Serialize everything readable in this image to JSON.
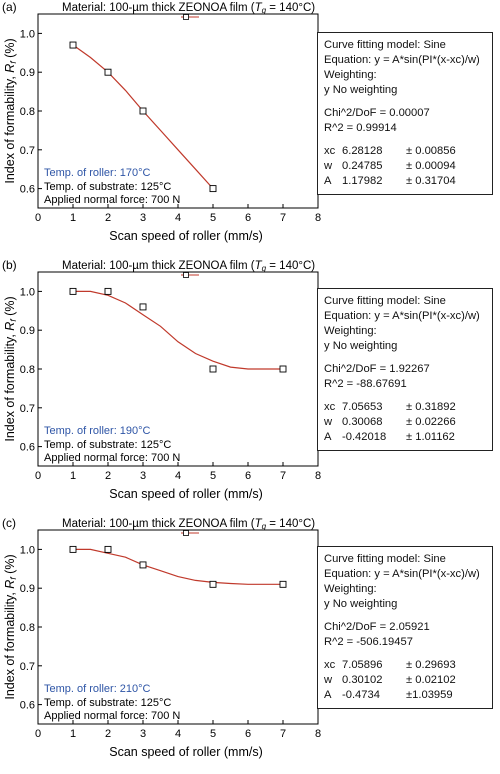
{
  "panels": [
    {
      "tag": "(a)",
      "header": {
        "prefix": "Material: 100-µm thick ZEONOA film (",
        "tg_symbol": "T",
        "tg_sub": "g",
        "suffix": " = 140°C)"
      },
      "legend_icon": "line-square-marker-icon",
      "annotations": {
        "roller": "Temp. of roller: 170°C",
        "substrate": "Temp. of substrate: 125°C",
        "force": "Applied normal force: 700 N"
      },
      "fit": {
        "model": "Curve fitting model: Sine",
        "equation": "Equation: y = A*sin(PI*(x-xc)/w)",
        "weighting_label": "Weighting:",
        "weighting": "y     No weighting",
        "chi2": "Chi^2/DoF = 0.00007",
        "r2": "R^2     = 0.99914",
        "params": [
          {
            "name": "xc",
            "value": "6.28128",
            "error": "± 0.00856"
          },
          {
            "name": "w",
            "value": "0.24785",
            "error": "± 0.00094"
          },
          {
            "name": "A",
            "value": "1.17982",
            "error": "± 0.31704"
          }
        ]
      }
    },
    {
      "tag": "(b)",
      "header": {
        "prefix": "Material: 100-µm thick ZEONOA film (",
        "tg_symbol": "T",
        "tg_sub": "g",
        "suffix": " = 140°C)"
      },
      "legend_icon": "line-square-marker-icon",
      "annotations": {
        "roller": "Temp. of roller: 190°C",
        "substrate": "Temp. of substrate: 125°C",
        "force": "Applied normal force: 700 N"
      },
      "fit": {
        "model": "Curve fitting model: Sine",
        "equation": "Equation: y = A*sin(PI*(x-xc)/w)",
        "weighting_label": "Weighting:",
        "weighting": "y     No weighting",
        "chi2": "Chi^2/DoF = 1.92267",
        "r2": "R^2     = -88.67691",
        "params": [
          {
            "name": "xc",
            "value": "7.05653",
            "error": "± 0.31892"
          },
          {
            "name": "w",
            "value": "0.30068",
            "error": "± 0.02266"
          },
          {
            "name": "A",
            "value": "-0.42018",
            "error": "± 1.01162"
          }
        ]
      }
    },
    {
      "tag": "(c)",
      "header": {
        "prefix": "Material: 100-µm thick ZEONOA film (",
        "tg_symbol": "T",
        "tg_sub": "g",
        "suffix": " = 140°C)"
      },
      "legend_icon": "line-square-marker-icon",
      "annotations": {
        "roller": "Temp. of roller: 210°C",
        "substrate": "Temp. of substrate: 125°C",
        "force": "Applied normal force: 700 N"
      },
      "fit": {
        "model": "Curve fitting model: Sine",
        "equation": "Equation: y = A*sin(PI*(x-xc)/w)",
        "weighting_label": "Weighting:",
        "weighting": "y     No weighting",
        "chi2": "Chi^2/DoF = 2.05921",
        "r2": "R^2     = -506.19457",
        "params": [
          {
            "name": "xc",
            "value": "7.05896",
            "error": "± 0.29693"
          },
          {
            "name": "w",
            "value": "0.30102",
            "error": "± 0.02102"
          },
          {
            "name": "A",
            "value": "-0.4734",
            "error": "±1.03959"
          }
        ]
      }
    }
  ],
  "colors": {
    "fit_line": "#c0392b",
    "roller_text": "#2e55a6",
    "axis": "#000000",
    "marker": "#000000"
  },
  "chart_data": [
    {
      "type": "scatter",
      "title": "",
      "xlabel": "Scan speed of roller (mm/s)",
      "ylabel_prefix": "Index of formability, ",
      "ylabel_symbol": "R",
      "ylabel_sub": "f",
      "ylabel_suffix": " (%)",
      "xlim": [
        0,
        8
      ],
      "ylim": [
        0.55,
        1.05
      ],
      "xticks": [
        0,
        1,
        2,
        3,
        4,
        5,
        6,
        7,
        8
      ],
      "yticks": [
        0.6,
        0.7,
        0.8,
        0.9,
        1.0
      ],
      "ytick_labels": [
        "0.6",
        "0.7",
        "0.8",
        "0.9",
        "1.0"
      ],
      "grid": false,
      "series": [
        {
          "x": [
            1,
            2,
            3,
            5
          ],
          "y": [
            0.97,
            0.9,
            0.8,
            0.6
          ],
          "marker": "open-square"
        }
      ],
      "fit_curve": {
        "x": [
          1.0,
          1.5,
          2.0,
          2.5,
          3.0,
          3.5,
          4.0,
          4.5,
          5.0
        ],
        "y": [
          0.97,
          0.938,
          0.9,
          0.853,
          0.8,
          0.75,
          0.7,
          0.65,
          0.6
        ]
      }
    },
    {
      "type": "scatter",
      "title": "",
      "xlabel": "Scan speed of roller (mm/s)",
      "ylabel_prefix": "Index of formability, ",
      "ylabel_symbol": "R",
      "ylabel_sub": "f",
      "ylabel_suffix": " (%)",
      "xlim": [
        0,
        8
      ],
      "ylim": [
        0.55,
        1.05
      ],
      "xticks": [
        0,
        1,
        2,
        3,
        4,
        5,
        6,
        7,
        8
      ],
      "yticks": [
        0.6,
        0.7,
        0.8,
        0.9,
        1.0
      ],
      "ytick_labels": [
        "0.6",
        "0.7",
        "0.8",
        "0.9",
        "1.0"
      ],
      "grid": false,
      "series": [
        {
          "x": [
            1,
            2,
            3,
            5,
            7
          ],
          "y": [
            1.0,
            1.0,
            0.96,
            0.8,
            0.8
          ],
          "marker": "open-square"
        }
      ],
      "fit_curve": {
        "x": [
          1.0,
          1.5,
          2.0,
          2.5,
          3.0,
          3.5,
          4.0,
          4.5,
          5.0,
          5.5,
          6.0,
          6.5,
          7.0
        ],
        "y": [
          1.0,
          1.0,
          0.99,
          0.97,
          0.94,
          0.91,
          0.87,
          0.84,
          0.82,
          0.805,
          0.8,
          0.8,
          0.8
        ]
      }
    },
    {
      "type": "scatter",
      "title": "",
      "xlabel": "Scan speed of roller (mm/s)",
      "ylabel_prefix": "Index of formability, ",
      "ylabel_symbol": "R",
      "ylabel_sub": "f",
      "ylabel_suffix": " (%)",
      "xlim": [
        0,
        8
      ],
      "ylim": [
        0.55,
        1.05
      ],
      "xticks": [
        0,
        1,
        2,
        3,
        4,
        5,
        6,
        7,
        8
      ],
      "yticks": [
        0.6,
        0.7,
        0.8,
        0.9,
        1.0
      ],
      "ytick_labels": [
        "0.6",
        "0.7",
        "0.8",
        "0.9",
        "1.0"
      ],
      "grid": false,
      "series": [
        {
          "x": [
            1,
            2,
            3,
            5,
            7
          ],
          "y": [
            1.0,
            1.0,
            0.96,
            0.91,
            0.91
          ],
          "marker": "open-square"
        }
      ],
      "fit_curve": {
        "x": [
          1.0,
          1.5,
          2.0,
          2.5,
          3.0,
          3.5,
          4.0,
          4.5,
          5.0,
          5.5,
          6.0,
          6.5,
          7.0
        ],
        "y": [
          1.0,
          1.0,
          0.99,
          0.98,
          0.96,
          0.945,
          0.93,
          0.92,
          0.915,
          0.912,
          0.91,
          0.91,
          0.91
        ]
      }
    }
  ]
}
